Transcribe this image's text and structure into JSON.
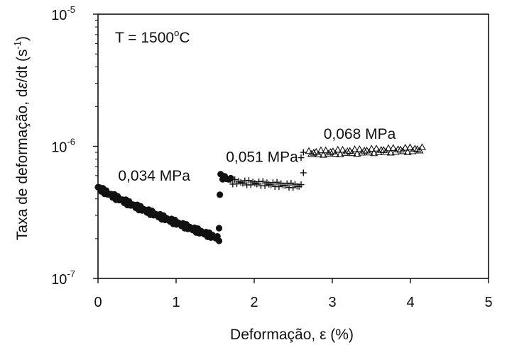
{
  "chart_data": {
    "type": "scatter",
    "title": "",
    "xlabel": {
      "main": "Deformação, ",
      "symbol": "ε",
      "unit": " (%)"
    },
    "ylabel": {
      "main": "Taxa de deformação, d",
      "symbol": "ε",
      "mid": "/dt (s",
      "exp": "-1",
      "end": ")"
    },
    "xlim": [
      0,
      5
    ],
    "ylim": [
      1e-07,
      1e-05
    ],
    "yscale": "log",
    "x_ticks": [
      "0",
      "1",
      "2",
      "3",
      "4",
      "5"
    ],
    "y_ticks": [
      {
        "value": 1e-07,
        "base": "10",
        "exp": "-7"
      },
      {
        "value": 1e-06,
        "base": "10",
        "exp": "-6"
      },
      {
        "value": 1e-05,
        "base": "10",
        "exp": "-5"
      }
    ],
    "temperature_label": {
      "prefix": "T = 1500",
      "deg": "o",
      "suffix": "C"
    },
    "annotations": [
      {
        "text": "0,034 MPa",
        "x": 0.72,
        "y": 5.5e-07
      },
      {
        "text": "0,051 MPa",
        "x": 2.1,
        "y": 7.6e-07
      },
      {
        "text": "0,068 MPa",
        "x": 3.35,
        "y": 1.14e-06
      }
    ],
    "series": [
      {
        "label": "0,034 MPa",
        "marker": "circle",
        "x_start": 0.0,
        "x_end": 1.55,
        "y_start": 4.9e-07,
        "y_end": 2e-07,
        "count": 75
      },
      {
        "label": "0,051 MPa",
        "marker": "circle",
        "x_start": 1.57,
        "x_end": 1.7,
        "y_start": 5.9e-07,
        "y_end": 5.6e-07,
        "count": 6
      },
      {
        "label": "0,051 MPa",
        "marker": "plus",
        "x_start": 1.7,
        "x_end": 2.6,
        "y_start": 5.4e-07,
        "y_end": 5e-07,
        "count": 36
      },
      {
        "label": "0,068 MPa",
        "marker": "triangle",
        "x_start": 2.7,
        "x_end": 4.15,
        "y_start": 8.9e-07,
        "y_end": 9.5e-07,
        "count": 48
      }
    ],
    "extra_points": [
      {
        "marker": "circle",
        "x": 1.56,
        "y": 4.3e-07
      },
      {
        "marker": "circle",
        "x": 1.55,
        "y": 2.4e-07
      },
      {
        "marker": "plus",
        "x": 2.6,
        "y": 8.2e-07
      },
      {
        "marker": "plus",
        "x": 2.63,
        "y": 6.3e-07
      },
      {
        "marker": "plus",
        "x": 2.63,
        "y": 9e-07
      }
    ]
  }
}
